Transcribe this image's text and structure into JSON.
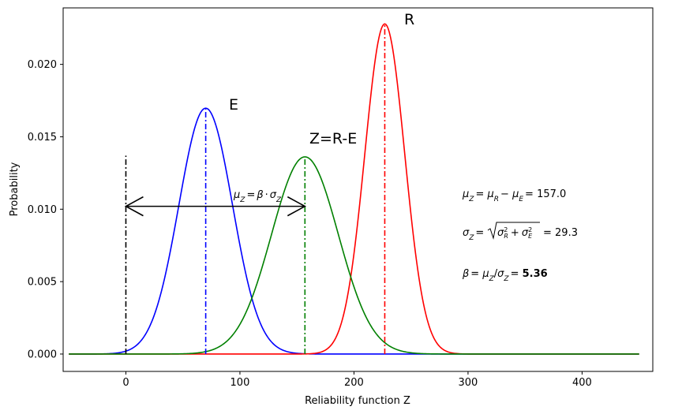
{
  "chart_data": {
    "type": "line",
    "title": "",
    "xlabel": "Reliability function Z",
    "ylabel": "Probability",
    "xlim": [
      -55,
      462
    ],
    "ylim": [
      -0.0012,
      0.0239
    ],
    "xticks": [
      0,
      100,
      200,
      300,
      400
    ],
    "yticks": [
      0.0,
      0.005,
      0.01,
      0.015,
      0.02
    ],
    "ytick_labels": [
      "0.000",
      "0.005",
      "0.010",
      "0.015",
      "0.020"
    ],
    "grid": false,
    "x_range": [
      -50,
      450
    ],
    "series": [
      {
        "name": "E",
        "mean": 70,
        "std": 23.5,
        "color": "#0000ff"
      },
      {
        "name": "R",
        "mean": 227,
        "std": 17.5,
        "color": "#ff0000"
      },
      {
        "name": "Z=R-E",
        "mean": 157.0,
        "std": 29.3,
        "color": "#008000"
      }
    ],
    "vlines": [
      {
        "x": 0,
        "y_top": 0.0137,
        "color": "#000000"
      },
      {
        "x": 70,
        "y_top": 0.017,
        "color": "#0000ff"
      },
      {
        "x": 157,
        "y_top": 0.0136,
        "color": "#008000"
      },
      {
        "x": 227,
        "y_top": 0.0228,
        "color": "#ff0000"
      }
    ],
    "arrow": {
      "x_start": 0,
      "x_end": 157,
      "y": 0.0102
    },
    "annotations": {
      "arrow_label": "μZ = β · σZ",
      "mu_line": "μZ = μR − μE =  157.0",
      "sigma_line": "σZ = √(σR² + σE²) =  29.3",
      "beta_line": "β = μZ/σZ = 5.36",
      "mu_value": "157.0",
      "sigma_value": "29.3",
      "beta_value": "5.36"
    }
  }
}
